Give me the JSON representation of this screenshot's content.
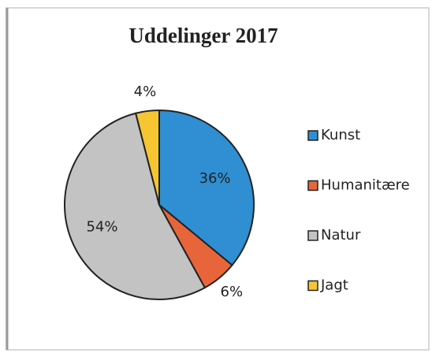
{
  "chart_data": {
    "type": "pie",
    "title": "Uddelinger 2017",
    "categories": [
      "Kunst",
      "Humanitære",
      "Natur",
      "Jagt"
    ],
    "values": [
      36,
      6,
      54,
      4
    ],
    "value_labels": [
      "36%",
      "6%",
      "54%",
      "4%"
    ],
    "colors": [
      "#2f8fd2",
      "#e8653c",
      "#c3c3c3",
      "#f6c532"
    ],
    "legend": "right"
  }
}
